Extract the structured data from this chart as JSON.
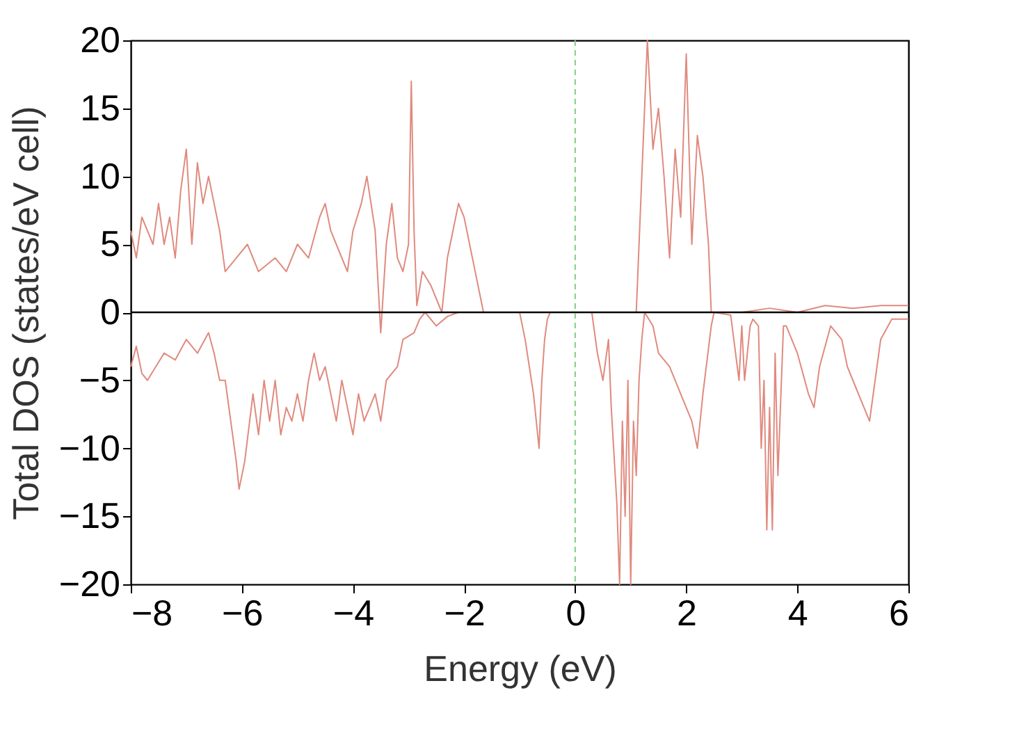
{
  "chart_data": {
    "type": "line",
    "xlabel": "Energy (eV)",
    "ylabel": "Total DOS (states/eV cell)",
    "xlim": [
      -8,
      6
    ],
    "ylim": [
      -20,
      20
    ],
    "xticks": [
      -8,
      -6,
      -4,
      -2,
      0,
      2,
      4,
      6
    ],
    "yticks": [
      -20,
      -15,
      -10,
      -5,
      0,
      5,
      10,
      15,
      20
    ],
    "grid": false,
    "marker": "none",
    "line_style": "solid",
    "series": [
      {
        "color": "#e08a7e",
        "x": [
          -8,
          -7.9,
          -7.8,
          -7.6,
          -7.5,
          -7.4,
          -7.3,
          -7.2,
          -7.1,
          -7.0,
          -6.9,
          -6.8,
          -6.7,
          -6.6,
          -6.4,
          -6.3,
          -6.1,
          -5.9,
          -5.7,
          -5.4,
          -5.2,
          -5.0,
          -4.8,
          -4.6,
          -4.5,
          -4.4,
          -4.3,
          -4.1,
          -4.0,
          -3.85,
          -3.75,
          -3.6,
          -3.5,
          -3.4,
          -3.3,
          -3.2,
          -3.1,
          -3.0,
          -2.95,
          -2.9,
          -2.85,
          -2.75,
          -2.6,
          -2.4,
          -2.3,
          -2.2,
          -2.1,
          -2.0,
          -1.9,
          -1.8,
          -1.7,
          -1.65,
          -1.0,
          0,
          1.1,
          1.2,
          1.3,
          1.4,
          1.5,
          1.6,
          1.7,
          1.8,
          1.9,
          2.0,
          2.1,
          2.2,
          2.3,
          2.4,
          2.45,
          3.0,
          3.5,
          4.0,
          4.5,
          5.0,
          5.5,
          6.0
        ],
        "values": [
          6,
          4,
          7,
          5,
          8,
          5,
          7,
          4,
          9,
          12,
          5,
          11,
          8,
          10,
          6,
          3,
          4,
          5,
          3,
          4,
          3,
          5,
          4,
          7,
          8,
          6,
          5,
          3,
          6,
          8,
          10,
          6,
          -1.5,
          5,
          8,
          4,
          3,
          5,
          17,
          6,
          0.5,
          3,
          2,
          0,
          4,
          6,
          8,
          7,
          5,
          3,
          1,
          0,
          0,
          0,
          0,
          10,
          20,
          12,
          15,
          10,
          4,
          12,
          7,
          19,
          5,
          13,
          10,
          5,
          0,
          0,
          0.3,
          0,
          0.5,
          0.3,
          0.5,
          0.5
        ]
      },
      {
        "color": "#e08a7e",
        "x": [
          -8,
          -7.9,
          -7.8,
          -7.7,
          -7.4,
          -7.2,
          -7.0,
          -6.8,
          -6.6,
          -6.5,
          -6.4,
          -6.3,
          -6.2,
          -6.1,
          -6.05,
          -5.95,
          -5.8,
          -5.7,
          -5.6,
          -5.5,
          -5.4,
          -5.3,
          -5.2,
          -5.1,
          -5.0,
          -4.9,
          -4.8,
          -4.7,
          -4.6,
          -4.5,
          -4.4,
          -4.3,
          -4.2,
          -4.0,
          -3.9,
          -3.8,
          -3.6,
          -3.5,
          -3.4,
          -3.2,
          -3.1,
          -2.9,
          -2.8,
          -2.7,
          -2.5,
          -2.3,
          -2.1,
          -1.0,
          -0.9,
          -0.75,
          -0.7,
          -0.65,
          -0.6,
          -0.55,
          -0.5,
          -0.45,
          0.3,
          0.4,
          0.5,
          0.6,
          0.65,
          0.75,
          0.8,
          0.85,
          0.9,
          0.95,
          1.0,
          1.05,
          1.1,
          1.15,
          1.2,
          1.25,
          1.4,
          1.5,
          1.7,
          1.9,
          2.0,
          2.1,
          2.2,
          2.3,
          2.45,
          2.5,
          2.8,
          2.95,
          3.0,
          3.05,
          3.15,
          3.2,
          3.3,
          3.35,
          3.4,
          3.45,
          3.5,
          3.55,
          3.6,
          3.65,
          3.75,
          3.8,
          4.0,
          4.2,
          4.3,
          4.4,
          4.6,
          4.8,
          4.9,
          5.0,
          5.2,
          5.3,
          5.4,
          5.5,
          5.7,
          6.0
        ],
        "values": [
          -4,
          -2.5,
          -4.5,
          -5,
          -3,
          -3.5,
          -2,
          -3,
          -1.5,
          -3,
          -5,
          -5,
          -8,
          -11,
          -13,
          -11,
          -6,
          -9,
          -5,
          -8,
          -5,
          -9,
          -7,
          -8,
          -6,
          -8,
          -5,
          -3,
          -5,
          -4,
          -6,
          -8,
          -5,
          -9,
          -6,
          -8,
          -6,
          -8,
          -5,
          -4,
          -2,
          -1.5,
          -0.5,
          0,
          -1,
          -0.3,
          0,
          0,
          -2,
          -6,
          -8,
          -10,
          -5,
          -2,
          -0.5,
          0,
          0,
          -3,
          -5,
          -2,
          -7,
          -14,
          -20,
          -8,
          -15,
          -5,
          -20,
          -8,
          -12,
          -5,
          -2,
          0,
          -1,
          -3,
          -4,
          -6,
          -7,
          -8,
          -10,
          -6,
          -1,
          0,
          -0.2,
          -5,
          -1,
          -5,
          -1,
          -0.5,
          -1,
          -10,
          -5,
          -16,
          -7,
          -16,
          -3,
          -12,
          -1,
          -1,
          -3,
          -6,
          -7,
          -4,
          -1,
          -2,
          -4,
          -5,
          -7,
          -8,
          -5,
          -2,
          -0.5,
          -0.5
        ]
      }
    ],
    "ref_lines": [
      {
        "axis": "y",
        "value": 0,
        "color": "#000000",
        "line_style": "solid"
      },
      {
        "axis": "x",
        "value": 0,
        "color": "#7fcf7f",
        "line_style": "dashed"
      }
    ]
  }
}
